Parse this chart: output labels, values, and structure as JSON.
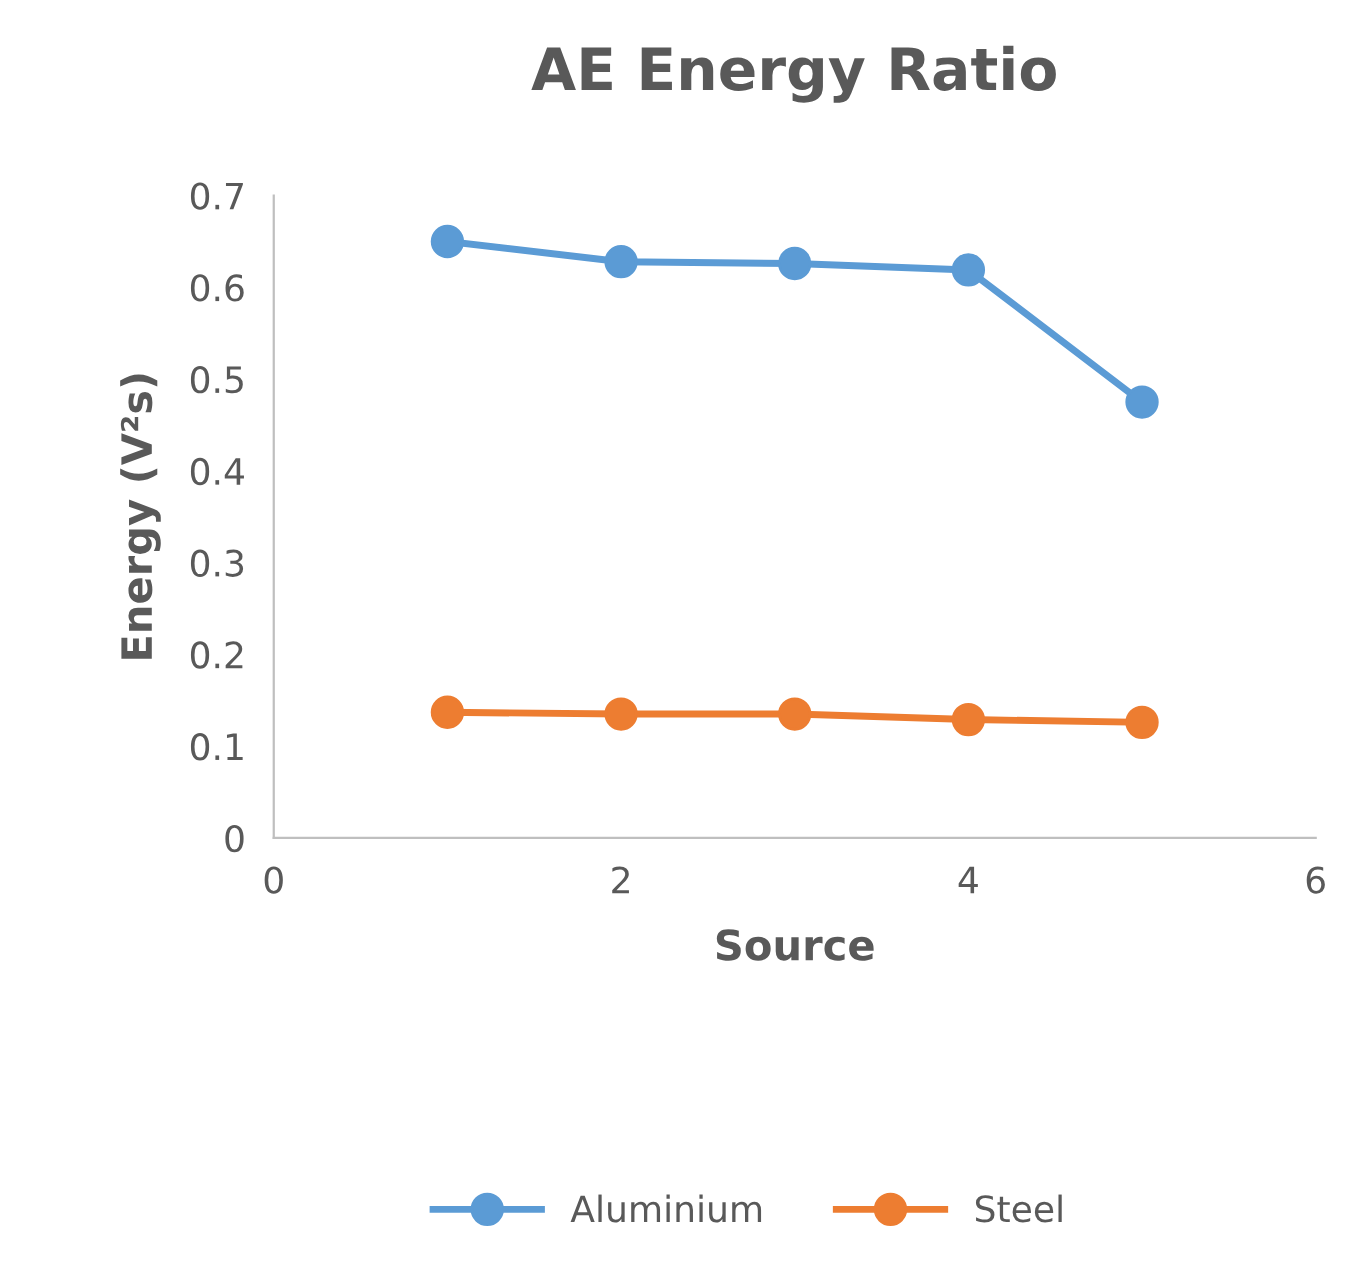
{
  "chart_data": {
    "type": "line",
    "title": "AE Energy Ratio",
    "xlabel": "Source",
    "ylabel": "Energy (V²s)",
    "x": [
      1,
      2,
      3,
      4,
      5
    ],
    "series": [
      {
        "name": "Aluminium",
        "color": "#5b9bd5",
        "values": [
          0.65,
          0.628,
          0.626,
          0.619,
          0.475
        ]
      },
      {
        "name": "Steel",
        "color": "#ed7d31",
        "values": [
          0.137,
          0.135,
          0.135,
          0.129,
          0.126
        ]
      }
    ],
    "xlim": [
      0,
      6
    ],
    "xticks": [
      0,
      2,
      4,
      6
    ],
    "ylim": [
      0,
      0.7
    ],
    "yticks": [
      {
        "value": 0,
        "label": "0"
      },
      {
        "value": 0.1,
        "label": "0.1"
      },
      {
        "value": 0.2,
        "label": "0.2"
      },
      {
        "value": 0.3,
        "label": "0.3"
      },
      {
        "value": 0.4,
        "label": "0.4"
      },
      {
        "value": 0.5,
        "label": "0.5"
      },
      {
        "value": 0.6,
        "label": "0.6"
      },
      {
        "value": 0.7,
        "label": "0.7"
      }
    ],
    "grid": false,
    "legend": "bottom",
    "marker": "circle",
    "line_style": "solid"
  }
}
